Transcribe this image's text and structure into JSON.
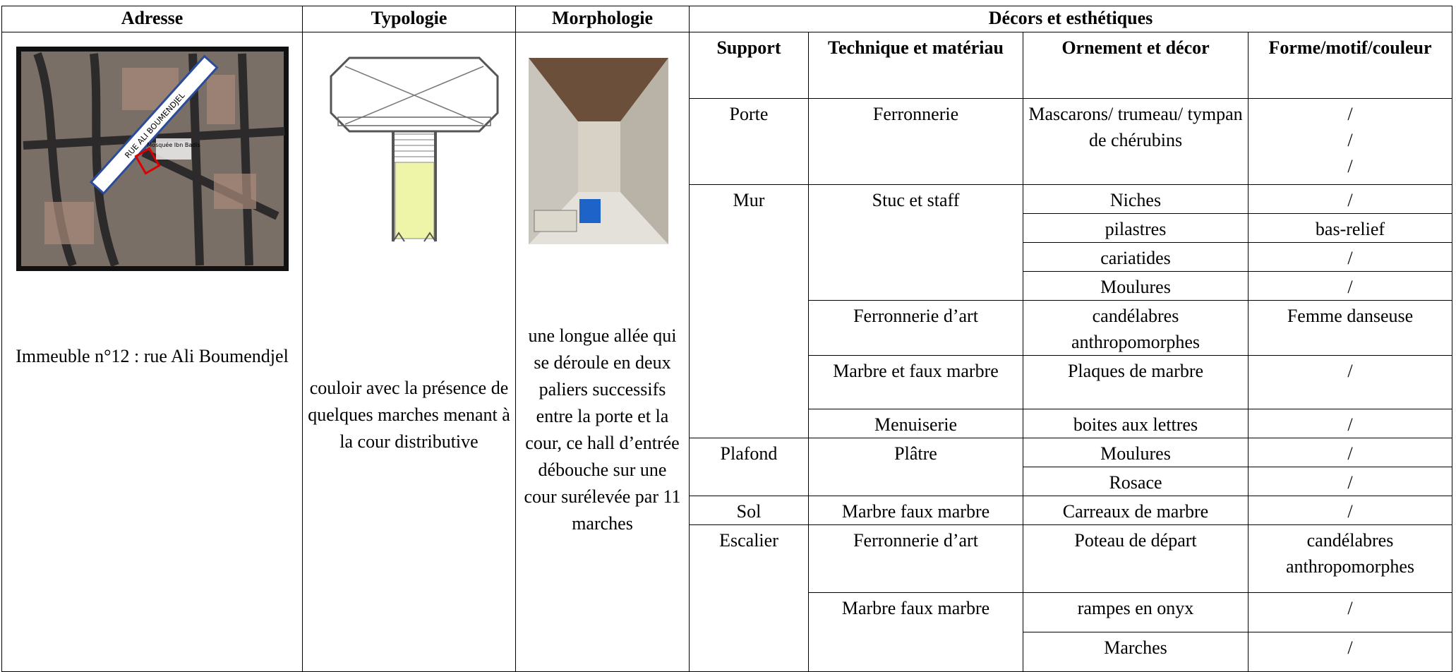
{
  "table": {
    "headers": [
      "Adresse",
      "Typologie",
      "Morphologie",
      "Décors et esthétiques"
    ],
    "subheaders": [
      "Support",
      "Technique et matériau",
      "Ornement et décor",
      "Forme/motif/couleur"
    ],
    "adresse": "Immeuble n°12 : rue Ali Boumendjel",
    "map_labels": [
      "RUE ALI BOUMENDJEL",
      "Mosquée Ibn Badis"
    ],
    "typologie": "couloir  avec la présence de quelques marches menant à la cour distributive",
    "morphologie": "une longue allée qui se déroule en deux paliers successifs entre la porte et la cour, ce hall d’entrée débouche sur une cour surélevée par 11 marches",
    "rows": [
      {
        "support": "Porte",
        "technique": "Ferronnerie",
        "ornement": "Mascarons/ trumeau/ tympan de chérubins",
        "forme": [
          "/",
          "/",
          "/"
        ]
      },
      {
        "support": "Mur",
        "technique": "Stuc et staff",
        "ornement": "Niches",
        "forme": [
          "/"
        ]
      },
      {
        "ornement": "pilastres",
        "forme": [
          "bas-relief"
        ]
      },
      {
        "ornement": "cariatides",
        "forme": [
          "/"
        ]
      },
      {
        "ornement": "Moulures",
        "forme": [
          "/"
        ]
      },
      {
        "technique": "Ferronnerie d’art",
        "ornement": "candélabres anthropomorphes",
        "forme": [
          "Femme danseuse"
        ]
      },
      {
        "technique": "Marbre et faux marbre",
        "ornement": "Plaques de marbre",
        "forme": [
          "/"
        ]
      },
      {
        "technique": "Menuiserie",
        "ornement": "boites aux lettres",
        "forme": [
          "/"
        ]
      },
      {
        "support": "Plafond",
        "technique": "Plâtre",
        "ornement": "Moulures",
        "forme": [
          "/"
        ]
      },
      {
        "ornement": "Rosace",
        "forme": [
          "/"
        ]
      },
      {
        "support": "Sol",
        "technique": "Marbre faux marbre",
        "ornement": "Carreaux de marbre",
        "forme": [
          "/"
        ]
      },
      {
        "support": "Escalier",
        "technique": "Ferronnerie d’art",
        "ornement": "Poteau de départ",
        "forme": [
          "candélabres anthropomorphes"
        ]
      },
      {
        "technique": "Marbre faux marbre",
        "ornement": "rampes en onyx",
        "forme": [
          "/"
        ]
      },
      {
        "ornement": "Marches",
        "forme": [
          "/"
        ]
      }
    ]
  }
}
